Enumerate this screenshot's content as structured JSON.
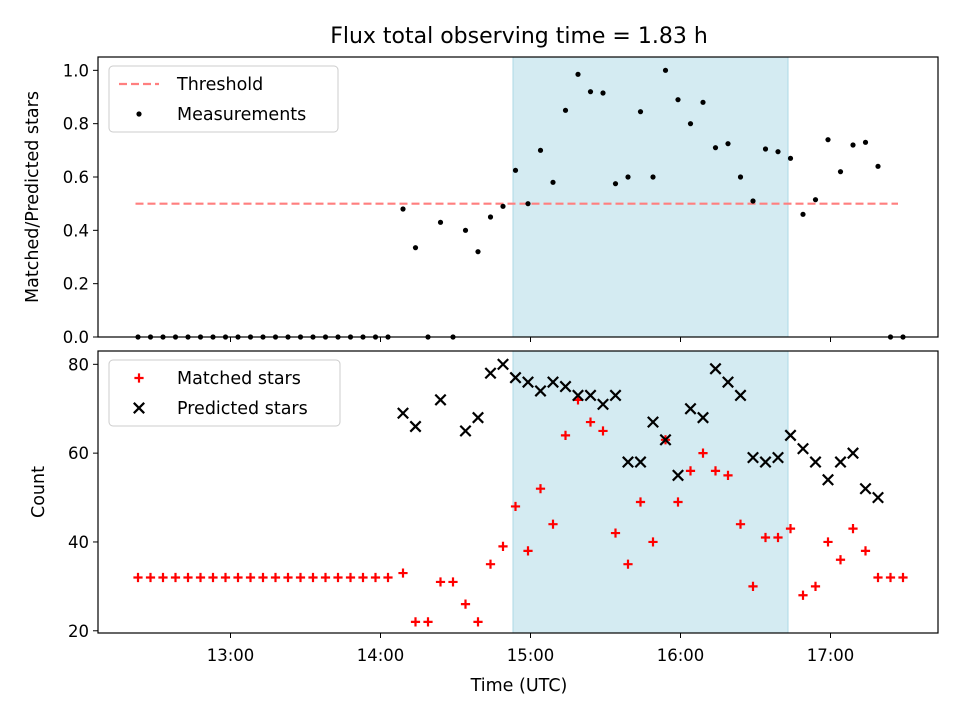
{
  "title": "Flux total observing time = 1.83 h",
  "colors": {
    "threshold": "#ff7f7f",
    "matched": "#ff0000",
    "predicted": "#000000",
    "measurement": "#000000",
    "span": "#add8e6"
  },
  "chart_data": [
    {
      "type": "scatter",
      "ylabel": "Matched/Predicted stars",
      "xlim": [
        "12:07",
        "17:43"
      ],
      "ylim": [
        0,
        1.05
      ],
      "yticks": [
        "0.0",
        "0.2",
        "0.4",
        "0.6",
        "0.8",
        "1.0"
      ],
      "shaded_span": [
        "14:53",
        "16:43"
      ],
      "threshold": {
        "value": 0.5,
        "x_range": [
          "12:22",
          "17:27"
        ]
      },
      "legend": {
        "placement": "upper-left",
        "entries": [
          "Threshold",
          "Measurements"
        ]
      },
      "series": [
        {
          "name": "Measurements",
          "points": [
            [
              "12:23",
              0
            ],
            [
              "12:28",
              0
            ],
            [
              "12:33",
              0
            ],
            [
              "12:38",
              0
            ],
            [
              "12:43",
              0
            ],
            [
              "12:48",
              0
            ],
            [
              "12:53",
              0
            ],
            [
              "12:58",
              0
            ],
            [
              "13:03",
              0
            ],
            [
              "13:08",
              0
            ],
            [
              "13:13",
              0
            ],
            [
              "13:18",
              0
            ],
            [
              "13:23",
              0
            ],
            [
              "13:28",
              0
            ],
            [
              "13:33",
              0
            ],
            [
              "13:38",
              0
            ],
            [
              "13:43",
              0
            ],
            [
              "13:48",
              0
            ],
            [
              "13:53",
              0
            ],
            [
              "13:58",
              0
            ],
            [
              "14:03",
              0
            ],
            [
              "14:09",
              0.48
            ],
            [
              "14:14",
              0.335
            ],
            [
              "14:19",
              0
            ],
            [
              "14:24",
              0.43
            ],
            [
              "14:29",
              0
            ],
            [
              "14:34",
              0.4
            ],
            [
              "14:39",
              0.32
            ],
            [
              "14:44",
              0.45
            ],
            [
              "14:49",
              0.49
            ],
            [
              "14:54",
              0.625
            ],
            [
              "14:59",
              0.5
            ],
            [
              "15:04",
              0.7
            ],
            [
              "15:09",
              0.58
            ],
            [
              "15:14",
              0.85
            ],
            [
              "15:19",
              0.985
            ],
            [
              "15:24",
              0.92
            ],
            [
              "15:29",
              0.915
            ],
            [
              "15:34",
              0.575
            ],
            [
              "15:39",
              0.6
            ],
            [
              "15:44",
              0.845
            ],
            [
              "15:49",
              0.6
            ],
            [
              "15:54",
              1.0
            ],
            [
              "15:59",
              0.89
            ],
            [
              "16:04",
              0.8
            ],
            [
              "16:09",
              0.88
            ],
            [
              "16:14",
              0.71
            ],
            [
              "16:19",
              0.725
            ],
            [
              "16:24",
              0.6
            ],
            [
              "16:29",
              0.51
            ],
            [
              "16:34",
              0.705
            ],
            [
              "16:39",
              0.695
            ],
            [
              "16:44",
              0.67
            ],
            [
              "16:49",
              0.46
            ],
            [
              "16:54",
              0.515
            ],
            [
              "16:59",
              0.74
            ],
            [
              "17:04",
              0.62
            ],
            [
              "17:09",
              0.72
            ],
            [
              "17:14",
              0.73
            ],
            [
              "17:19",
              0.64
            ],
            [
              "17:24",
              0
            ],
            [
              "17:29",
              0
            ]
          ]
        }
      ]
    },
    {
      "type": "scatter",
      "xlabel": "Time (UTC)",
      "ylabel": "Count",
      "xlim": [
        "12:07",
        "17:43"
      ],
      "ylim": [
        19.5,
        83
      ],
      "xticks": [
        "13:00",
        "14:00",
        "15:00",
        "16:00",
        "17:00"
      ],
      "yticks": [
        "20",
        "40",
        "60",
        "80"
      ],
      "shaded_span": [
        "14:53",
        "16:43"
      ],
      "legend": {
        "placement": "upper-left",
        "entries": [
          "Matched stars",
          "Predicted stars"
        ]
      },
      "series": [
        {
          "name": "Matched stars",
          "points": [
            [
              "12:23",
              32
            ],
            [
              "12:28",
              32
            ],
            [
              "12:33",
              32
            ],
            [
              "12:38",
              32
            ],
            [
              "12:43",
              32
            ],
            [
              "12:48",
              32
            ],
            [
              "12:53",
              32
            ],
            [
              "12:58",
              32
            ],
            [
              "13:03",
              32
            ],
            [
              "13:08",
              32
            ],
            [
              "13:13",
              32
            ],
            [
              "13:18",
              32
            ],
            [
              "13:23",
              32
            ],
            [
              "13:28",
              32
            ],
            [
              "13:33",
              32
            ],
            [
              "13:38",
              32
            ],
            [
              "13:43",
              32
            ],
            [
              "13:48",
              32
            ],
            [
              "13:53",
              32
            ],
            [
              "13:58",
              32
            ],
            [
              "14:03",
              32
            ],
            [
              "14:09",
              33
            ],
            [
              "14:14",
              22
            ],
            [
              "14:19",
              22
            ],
            [
              "14:24",
              31
            ],
            [
              "14:29",
              31
            ],
            [
              "14:34",
              26
            ],
            [
              "14:39",
              22
            ],
            [
              "14:44",
              35
            ],
            [
              "14:49",
              39
            ],
            [
              "14:54",
              48
            ],
            [
              "14:59",
              38
            ],
            [
              "15:04",
              52
            ],
            [
              "15:09",
              44
            ],
            [
              "15:14",
              64
            ],
            [
              "15:19",
              72
            ],
            [
              "15:24",
              67
            ],
            [
              "15:29",
              65
            ],
            [
              "15:34",
              42
            ],
            [
              "15:39",
              35
            ],
            [
              "15:44",
              49
            ],
            [
              "15:49",
              40
            ],
            [
              "15:54",
              63
            ],
            [
              "15:59",
              49
            ],
            [
              "16:04",
              56
            ],
            [
              "16:09",
              60
            ],
            [
              "16:14",
              56
            ],
            [
              "16:19",
              55
            ],
            [
              "16:24",
              44
            ],
            [
              "16:29",
              30
            ],
            [
              "16:34",
              41
            ],
            [
              "16:39",
              41
            ],
            [
              "16:44",
              43
            ],
            [
              "16:49",
              28
            ],
            [
              "16:54",
              30
            ],
            [
              "16:59",
              40
            ],
            [
              "17:04",
              36
            ],
            [
              "17:09",
              43
            ],
            [
              "17:14",
              38
            ],
            [
              "17:19",
              32
            ],
            [
              "17:24",
              32
            ],
            [
              "17:29",
              32
            ]
          ]
        },
        {
          "name": "Predicted stars",
          "points": [
            [
              "14:09",
              69
            ],
            [
              "14:14",
              66
            ],
            [
              "14:24",
              72
            ],
            [
              "14:34",
              65
            ],
            [
              "14:39",
              68
            ],
            [
              "14:44",
              78
            ],
            [
              "14:49",
              80
            ],
            [
              "14:54",
              77
            ],
            [
              "14:59",
              76
            ],
            [
              "15:04",
              74
            ],
            [
              "15:09",
              76
            ],
            [
              "15:14",
              75
            ],
            [
              "15:19",
              73
            ],
            [
              "15:24",
              73
            ],
            [
              "15:29",
              71
            ],
            [
              "15:34",
              73
            ],
            [
              "15:39",
              58
            ],
            [
              "15:44",
              58
            ],
            [
              "15:49",
              67
            ],
            [
              "15:54",
              63
            ],
            [
              "15:59",
              55
            ],
            [
              "16:04",
              70
            ],
            [
              "16:09",
              68
            ],
            [
              "16:14",
              79
            ],
            [
              "16:19",
              76
            ],
            [
              "16:24",
              73
            ],
            [
              "16:29",
              59
            ],
            [
              "16:34",
              58
            ],
            [
              "16:39",
              59
            ],
            [
              "16:44",
              64
            ],
            [
              "16:49",
              61
            ],
            [
              "16:54",
              58
            ],
            [
              "16:59",
              54
            ],
            [
              "17:04",
              58
            ],
            [
              "17:09",
              60
            ],
            [
              "17:14",
              52
            ],
            [
              "17:19",
              50
            ]
          ]
        }
      ]
    }
  ]
}
